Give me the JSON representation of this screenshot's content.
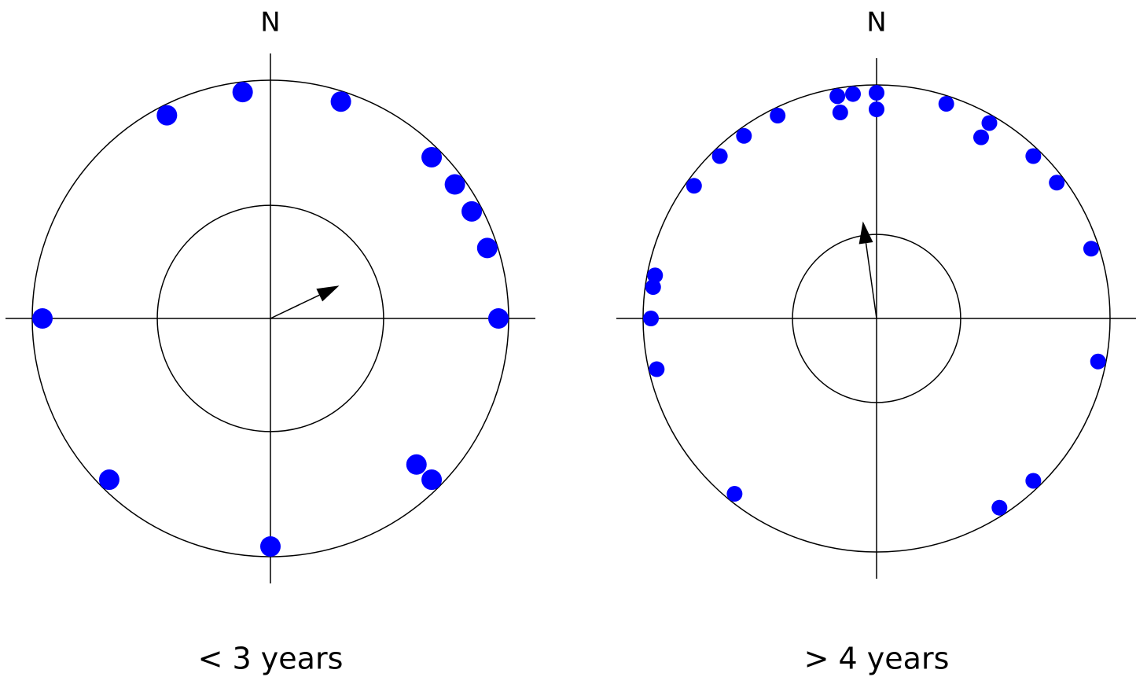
{
  "chart_data": [
    {
      "type": "circular",
      "north_label": "N",
      "label": "< 3 years",
      "color": "#0000ff",
      "angles": [
        333,
        353,
        18,
        45,
        54,
        62,
        72,
        90,
        135,
        135,
        180,
        225,
        270
      ],
      "mean_angle": 64.5,
      "mean_length": 0.32,
      "critical_radius": 0.475
    },
    {
      "type": "circular",
      "north_label": "N",
      "label": "> 4 years",
      "color": "#0000ff",
      "angles": [
        350,
        350,
        354,
        0,
        0,
        334,
        324,
        316,
        306,
        18,
        30,
        30,
        44,
        53,
        72,
        101,
        136,
        147,
        219,
        257,
        270,
        278,
        281
      ],
      "mean_angle": 352,
      "mean_length": 0.42,
      "critical_radius": 0.36
    }
  ]
}
